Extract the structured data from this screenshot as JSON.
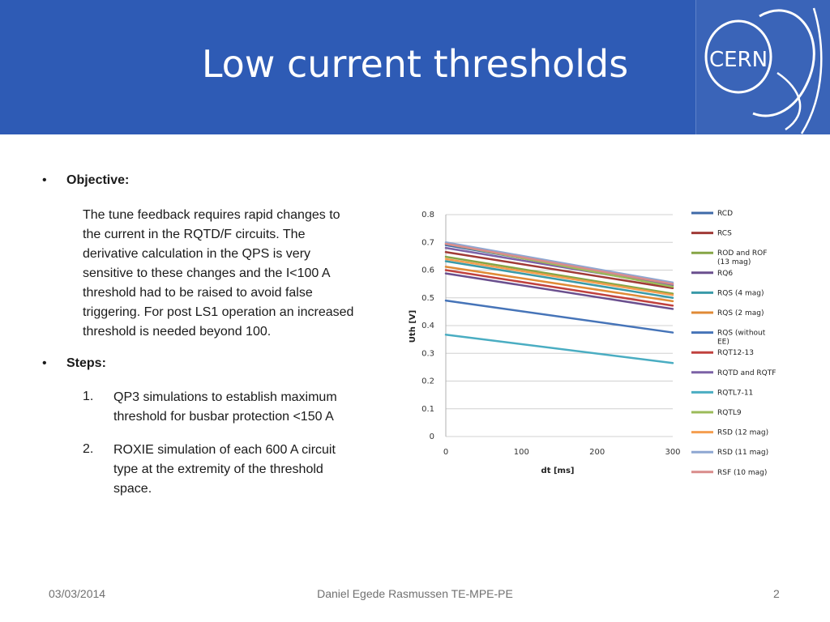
{
  "slide": {
    "title": "Low current thresholds"
  },
  "logo": {
    "text": "CERN",
    "icon": "cern-logo"
  },
  "body": {
    "objective_heading": "Objective:",
    "objective_lines": [
      "The tune feedback requires rapid changes to",
      "the current in the RQTD/F circuits. The",
      "derivative calculation in the QPS is very",
      "sensitive to these changes  and the I<100 A",
      "threshold had to be raised to avoid false",
      "triggering. For post LS1 operation an increased",
      "threshold is needed beyond 100."
    ],
    "steps_heading": "Steps:",
    "steps": [
      {
        "num": "1.",
        "lines": [
          "QP3 simulations to establish maximum",
          "threshold for busbar protection <150 A"
        ]
      },
      {
        "num": "2.",
        "lines": [
          "ROXIE simulation of each 600 A circuit",
          "type at the extremity of the threshold",
          "space."
        ]
      }
    ]
  },
  "footer": {
    "date": "03/03/2014",
    "author": "Daniel Egede Rasmussen TE-MPE-PE",
    "page": "2"
  },
  "chart_data": {
    "type": "line",
    "xlabel": "dt [ms]",
    "ylabel": "Uth [V]",
    "xlim": [
      0,
      300
    ],
    "ylim": [
      0,
      0.8
    ],
    "x_ticks": [
      0,
      100,
      200,
      300
    ],
    "y_ticks": [
      0,
      0.1,
      0.2,
      0.3,
      0.4,
      0.5,
      0.6,
      0.7,
      0.8
    ],
    "x_tick_labels": [
      "0",
      "100",
      "200",
      "300"
    ],
    "y_tick_labels": [
      "0",
      "0.1",
      "0.2",
      "0.3",
      "0.4",
      "0.5",
      "0.6",
      "0.7",
      "0.8"
    ],
    "grid": "horizontal",
    "legend_position": "right",
    "x": [
      0,
      300
    ],
    "series": [
      {
        "name": "RCD",
        "color": "#3f6aa8",
        "values": [
          0.69,
          0.55
        ]
      },
      {
        "name": "RCS",
        "color": "#a03a36",
        "values": [
          0.665,
          0.535
        ]
      },
      {
        "name": "ROD and ROF (13 mag)",
        "color": "#86a546",
        "values": [
          0.648,
          0.515
        ]
      },
      {
        "name": "RQ6",
        "color": "#6a4f8e",
        "values": [
          0.588,
          0.46
        ]
      },
      {
        "name": "RQS (4 mag)",
        "color": "#3a9aa8",
        "values": [
          0.632,
          0.5
        ]
      },
      {
        "name": "RQS (2 mag)",
        "color": "#e08a36",
        "values": [
          0.612,
          0.488
        ]
      },
      {
        "name": "RQS (without EE)",
        "color": "#4674b8",
        "values": [
          0.49,
          0.375
        ]
      },
      {
        "name": "RQT12-13",
        "color": "#c0413e",
        "values": [
          0.6,
          0.472
        ]
      },
      {
        "name": "RQTD and RQTF",
        "color": "#7c62a6",
        "values": [
          0.68,
          0.545
        ]
      },
      {
        "name": "RQTL7-11",
        "color": "#4aadc2",
        "values": [
          0.367,
          0.265
        ]
      },
      {
        "name": "RQTL9",
        "color": "#9bbb59",
        "values": [
          0.695,
          0.54
        ]
      },
      {
        "name": "RSD (12 mag)",
        "color": "#f59e4f",
        "values": [
          0.64,
          0.51
        ]
      },
      {
        "name": "RSD (11 mag)",
        "color": "#8ea7d2",
        "values": [
          0.7,
          0.555
        ]
      },
      {
        "name": "RSF (10 mag)",
        "color": "#d98c8b",
        "values": [
          0.695,
          0.55
        ]
      }
    ]
  }
}
